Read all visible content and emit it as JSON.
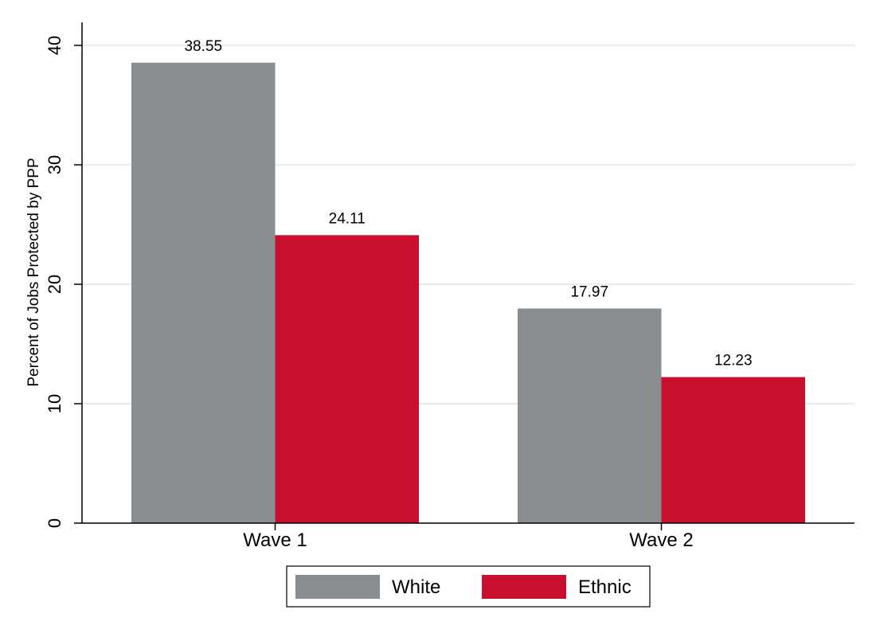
{
  "chart_data": {
    "type": "bar",
    "title": "",
    "xlabel": "",
    "ylabel": "Percent of Jobs Protected by PPP",
    "categories": [
      "Wave 1",
      "Wave 2"
    ],
    "series": [
      {
        "name": "White",
        "values": [
          38.55,
          17.97
        ],
        "labels": [
          "38.55",
          "17.97"
        ],
        "color": "#8a8d8f"
      },
      {
        "name": "Ethnic",
        "values": [
          24.11,
          12.23
        ],
        "labels": [
          "24.11",
          "12.23"
        ],
        "color": "#c8102e"
      }
    ],
    "ylim": [
      0,
      40
    ],
    "yticks": [
      0,
      10,
      20,
      30,
      40
    ],
    "ytick_labels": [
      "0",
      "10",
      "20",
      "30",
      "40"
    ],
    "grid": true,
    "grid_color": "#e8eef0",
    "legend_position": "bottom-center"
  }
}
